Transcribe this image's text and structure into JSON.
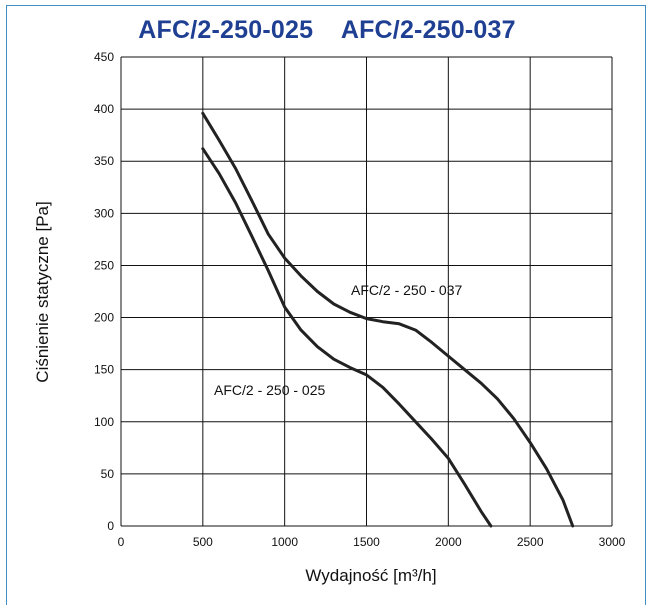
{
  "chart_data": {
    "type": "line",
    "title": "AFC/2-250-025    AFC/2-250-037",
    "xlabel": "Wydajność [m³/h]",
    "ylabel": "Ciśnienie statyczne [Pa]",
    "xlim": [
      0,
      3000
    ],
    "ylim": [
      0,
      450
    ],
    "x_ticks": [
      0,
      500,
      1000,
      1500,
      2000,
      2500,
      3000
    ],
    "y_ticks": [
      0,
      50,
      100,
      150,
      200,
      250,
      300,
      350,
      400,
      450
    ],
    "grid": true,
    "series": [
      {
        "name": "AFC/2 - 250 - 025",
        "x": [
          500,
          600,
          700,
          800,
          900,
          1000,
          1100,
          1200,
          1300,
          1400,
          1500,
          1600,
          1700,
          1800,
          1900,
          2000,
          2100,
          2200,
          2260
        ],
        "y": [
          362,
          338,
          310,
          278,
          245,
          210,
          188,
          172,
          160,
          152,
          145,
          133,
          117,
          100,
          83,
          65,
          40,
          14,
          0
        ]
      },
      {
        "name": "AFC/2 - 250 - 037",
        "x": [
          500,
          600,
          700,
          800,
          900,
          1000,
          1100,
          1200,
          1300,
          1400,
          1500,
          1600,
          1700,
          1800,
          1900,
          2000,
          2100,
          2200,
          2300,
          2400,
          2500,
          2600,
          2700,
          2760
        ],
        "y": [
          396,
          370,
          343,
          312,
          280,
          257,
          240,
          225,
          213,
          205,
          199,
          196,
          194,
          188,
          176,
          163,
          150,
          137,
          122,
          103,
          80,
          55,
          25,
          0
        ]
      }
    ]
  }
}
